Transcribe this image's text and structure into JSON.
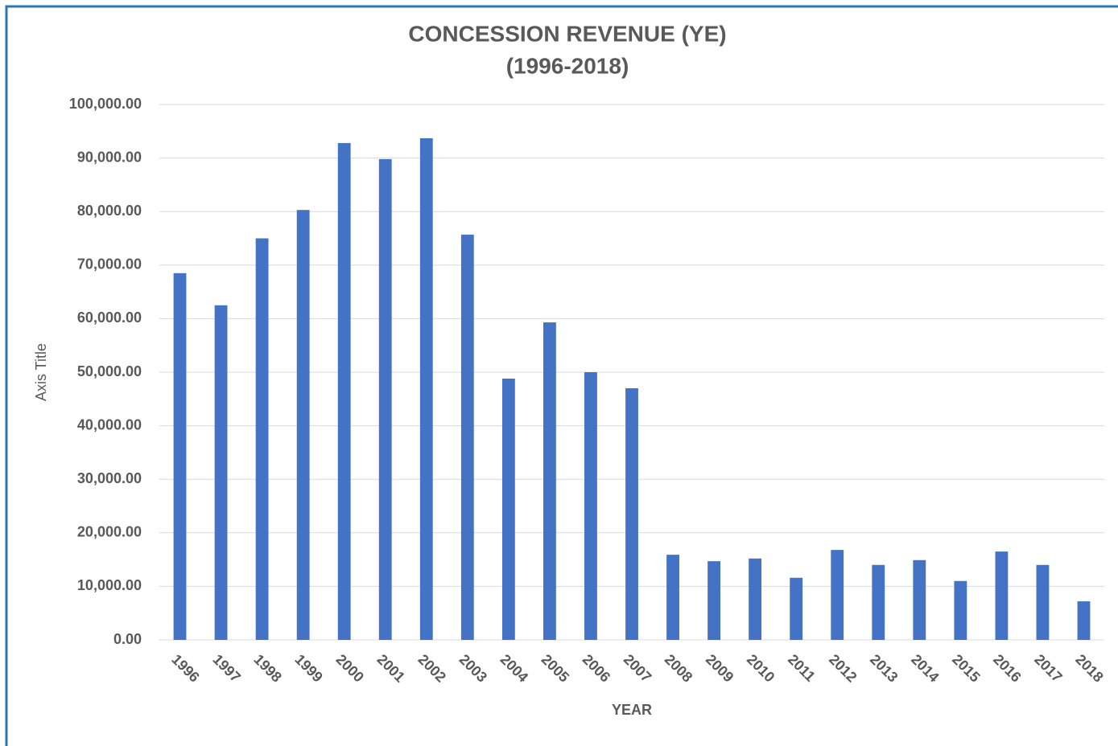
{
  "chart_data": {
    "type": "bar",
    "title": "CONCESSION REVENUE (YE)",
    "subtitle": "(1996-2018)",
    "x_label": "YEAR",
    "y_label": "Axis Title",
    "categories": [
      "1996",
      "1997",
      "1998",
      "1999",
      "2000",
      "2001",
      "2002",
      "2003",
      "2004",
      "2005",
      "2006",
      "2007",
      "2008",
      "2009",
      "2010",
      "2011",
      "2012",
      "2013",
      "2014",
      "2015",
      "2016",
      "2017",
      "2018"
    ],
    "values": [
      68500,
      62500,
      75000,
      80300,
      92800,
      89800,
      93700,
      75700,
      48800,
      59300,
      50000,
      47000,
      15900,
      14700,
      15200,
      11600,
      16800,
      14000,
      14900,
      11000,
      16500,
      14000,
      7200
    ],
    "color": "#4472c4",
    "ylim": [
      0,
      100000
    ],
    "yticks": [
      {
        "value": 0,
        "label": "0.00"
      },
      {
        "value": 10000,
        "label": "10,000.00"
      },
      {
        "value": 20000,
        "label": "20,000.00"
      },
      {
        "value": 30000,
        "label": "30,000.00"
      },
      {
        "value": 40000,
        "label": "40,000.00"
      },
      {
        "value": 50000,
        "label": "50,000.00"
      },
      {
        "value": 60000,
        "label": "60,000.00"
      },
      {
        "value": 70000,
        "label": "70,000.00"
      },
      {
        "value": 80000,
        "label": "80,000.00"
      },
      {
        "value": 90000,
        "label": "90,000.00"
      },
      {
        "value": 100000,
        "label": "100,000.00"
      }
    ],
    "grid": true
  }
}
